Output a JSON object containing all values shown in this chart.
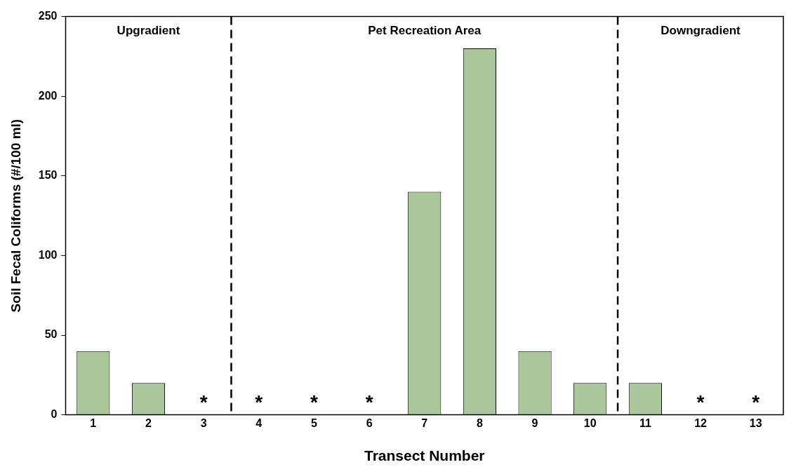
{
  "chart_data": {
    "type": "bar",
    "xlabel": "Transect Number",
    "ylabel": "Soil Fecal Coliforms (#/100 ml)",
    "x": [
      1,
      2,
      3,
      4,
      5,
      6,
      7,
      8,
      9,
      10,
      11,
      12,
      13
    ],
    "values": [
      40,
      20,
      0,
      0,
      0,
      0,
      140,
      230,
      40,
      20,
      20,
      0,
      0
    ],
    "color": "#a9c79b",
    "xlim": [
      0.5,
      13.5
    ],
    "xticks": [
      1,
      2,
      3,
      4,
      5,
      6,
      7,
      8,
      9,
      10,
      11,
      12,
      13
    ],
    "ylim": [
      0,
      250
    ],
    "yticks": [
      0,
      50,
      100,
      150,
      200,
      250
    ],
    "ref_lines": [
      {
        "axis": "x",
        "value": 3.5,
        "line_style": "dashed"
      },
      {
        "axis": "x",
        "value": 10.5,
        "line_style": "dashed"
      }
    ],
    "annotations": [
      "Upgradient",
      "Pet Recreation Area",
      "Downgradient",
      {
        "text": "*",
        "x": 3,
        "y": 0
      },
      {
        "text": "*",
        "x": 4,
        "y": 0
      },
      {
        "text": "*",
        "x": 5,
        "y": 0
      },
      {
        "text": "*",
        "x": 6,
        "y": 0
      },
      {
        "text": "*",
        "x": 12,
        "y": 0
      },
      {
        "text": "*",
        "x": 13,
        "y": 0
      }
    ]
  }
}
